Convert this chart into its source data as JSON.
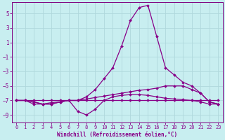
{
  "xlabel": "Windchill (Refroidissement éolien,°C)",
  "bg_color": "#c8eef0",
  "grid_color": "#b0d8dc",
  "line_color": "#880088",
  "xlim": [
    -0.5,
    23.5
  ],
  "ylim": [
    -10.0,
    6.5
  ],
  "yticks": [
    5,
    3,
    1,
    -1,
    -3,
    -5,
    -7,
    -9
  ],
  "xticks": [
    0,
    1,
    2,
    3,
    4,
    5,
    6,
    7,
    8,
    9,
    10,
    11,
    12,
    13,
    14,
    15,
    16,
    17,
    18,
    19,
    20,
    21,
    22,
    23
  ],
  "series": [
    {
      "x": [
        0,
        1,
        2,
        3,
        4,
        5,
        6,
        7,
        8,
        9,
        10,
        11,
        12,
        13,
        14,
        15,
        16,
        17,
        18,
        19,
        20,
        21,
        22,
        23
      ],
      "y": [
        -7.0,
        -7.0,
        -7.2,
        -7.5,
        -7.5,
        -7.2,
        -7.0,
        -7.0,
        -6.5,
        -5.5,
        -4.0,
        -2.5,
        0.5,
        4.0,
        5.8,
        6.1,
        1.8,
        -2.5,
        -3.5,
        -4.5,
        -5.0,
        -6.0,
        -7.2,
        -7.5
      ]
    },
    {
      "x": [
        0,
        1,
        2,
        3,
        4,
        5,
        6,
        7,
        8,
        9,
        10,
        11,
        12,
        13,
        14,
        15,
        16,
        17,
        18,
        19,
        20,
        21,
        22,
        23
      ],
      "y": [
        -7.0,
        -7.0,
        -7.5,
        -7.5,
        -7.5,
        -7.2,
        -7.0,
        -8.5,
        -9.0,
        -8.2,
        -7.0,
        -6.5,
        -6.3,
        -6.2,
        -6.2,
        -6.3,
        -6.5,
        -6.7,
        -6.8,
        -6.9,
        -7.0,
        -7.2,
        -7.5,
        -7.5
      ]
    },
    {
      "x": [
        0,
        1,
        2,
        3,
        4,
        5,
        6,
        7,
        8,
        9,
        10,
        11,
        12,
        13,
        14,
        15,
        16,
        17,
        18,
        19,
        20,
        21,
        22,
        23
      ],
      "y": [
        -7.0,
        -7.0,
        -7.0,
        -7.0,
        -7.0,
        -7.0,
        -7.0,
        -7.0,
        -7.0,
        -7.0,
        -7.0,
        -7.0,
        -7.0,
        -7.0,
        -7.0,
        -7.0,
        -7.0,
        -7.0,
        -7.0,
        -7.0,
        -7.0,
        -7.0,
        -7.0,
        -7.0
      ]
    },
    {
      "x": [
        0,
        1,
        2,
        3,
        4,
        5,
        6,
        7,
        8,
        9,
        10,
        11,
        12,
        13,
        14,
        15,
        16,
        17,
        18,
        19,
        20,
        21,
        22,
        23
      ],
      "y": [
        -7.0,
        -7.0,
        -7.2,
        -7.5,
        -7.3,
        -7.2,
        -7.0,
        -7.0,
        -6.8,
        -6.6,
        -6.4,
        -6.2,
        -6.0,
        -5.8,
        -5.6,
        -5.5,
        -5.3,
        -5.0,
        -5.0,
        -5.0,
        -5.5,
        -6.0,
        -7.2,
        -7.5
      ]
    }
  ]
}
